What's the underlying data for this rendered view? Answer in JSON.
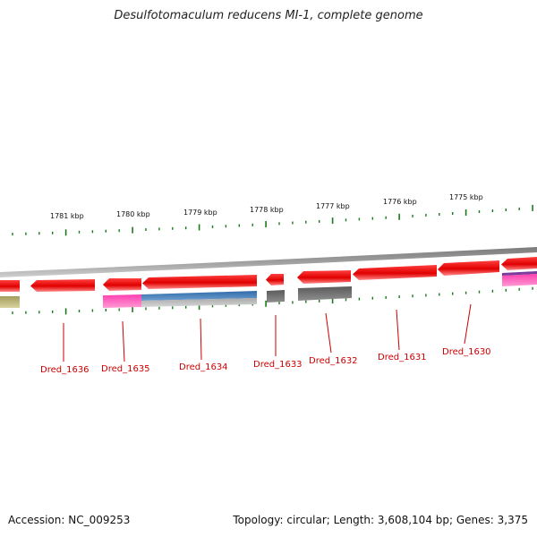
{
  "title": "Desulfotomaculum reducens MI-1, complete genome",
  "accession": "Accession: NC_009253",
  "summary": "Topology: circular; Length: 3,608,104 bp; Genes: 3,375",
  "ticks": [
    "1781 kbp",
    "1780 kbp",
    "1779 kbp",
    "1778 kbp",
    "1777 kbp",
    "1776 kbp",
    "1775 kbp"
  ],
  "genes": [
    {
      "label": "Dred_1636"
    },
    {
      "label": "Dred_1635"
    },
    {
      "label": "Dred_1634"
    },
    {
      "label": "Dred_1633"
    },
    {
      "label": "Dred_1632"
    },
    {
      "label": "Dred_1631"
    },
    {
      "label": "Dred_1630"
    }
  ],
  "colors": {
    "gene": "#ee0000",
    "tick": "#1a7a1a",
    "backbone": "#888888",
    "label": "#cc0000",
    "magenta": "#ee1a9c",
    "blue": "#3a72b0",
    "gray": "#6a6a6a",
    "olive": "#b7b077"
  }
}
